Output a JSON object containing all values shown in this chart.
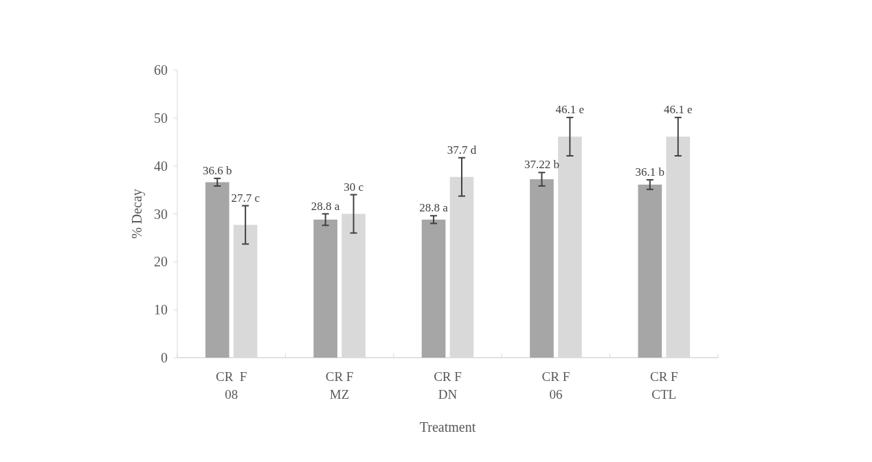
{
  "chart_data": {
    "type": "bar",
    "xlabel": "Treatment",
    "ylabel": "% Decay",
    "categories": [
      "CR  F\n08",
      "CR F\nMZ",
      "CR F\nDN",
      "CR F\n06",
      "CR F\nCTL"
    ],
    "series": [
      {
        "color": "#a6a6a6",
        "values": [
          36.6,
          28.8,
          28.8,
          37.22,
          36.1
        ],
        "errors": [
          0.8,
          1.2,
          0.8,
          1.4,
          1.0
        ],
        "value_labels": [
          "36.6 b",
          "28.8 a",
          "28.8 a",
          "37.22 b",
          "36.1 b"
        ]
      },
      {
        "color": "#d9d9d9",
        "values": [
          27.7,
          30,
          37.7,
          46.1,
          46.1
        ],
        "errors": [
          4,
          4,
          4,
          4,
          4
        ],
        "value_labels": [
          "27.7 c",
          "30 c",
          "37.7 d",
          "46.1 e",
          "46.1 e"
        ]
      }
    ],
    "ylim": [
      0,
      60
    ],
    "yticks": [
      0,
      10,
      20,
      30,
      40,
      50,
      60
    ],
    "grid": false
  }
}
